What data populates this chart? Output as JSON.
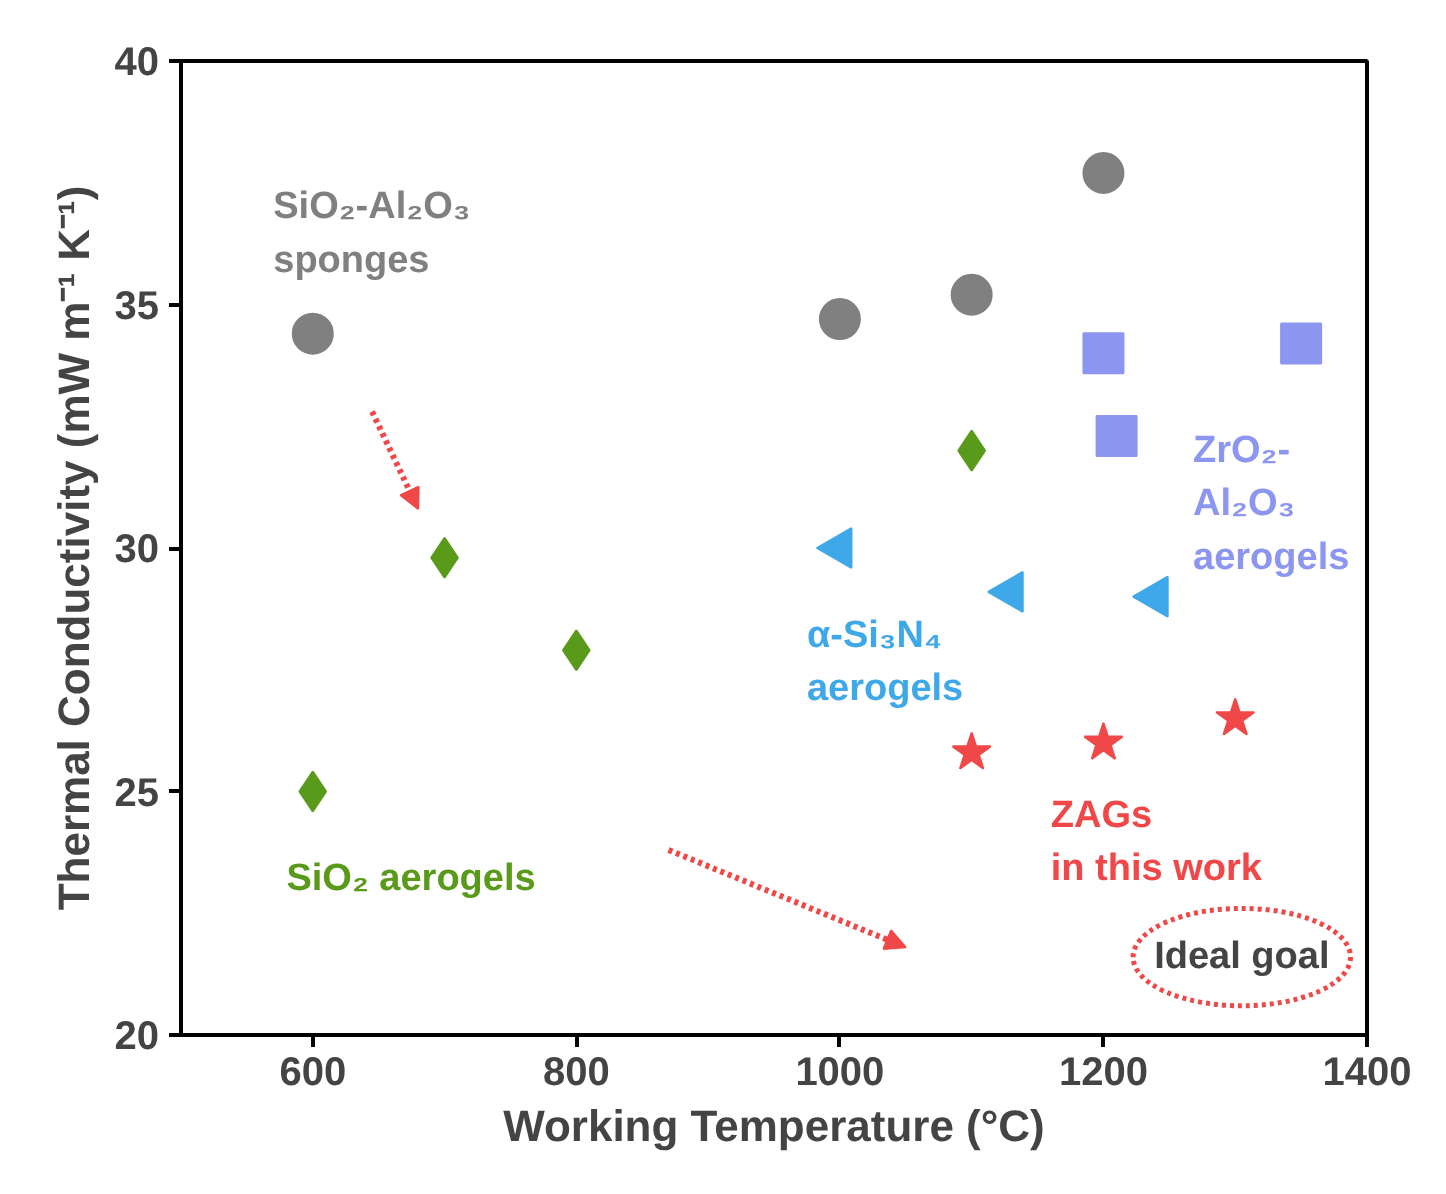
{
  "chart_data": {
    "type": "scatter",
    "xlabel": "Working Temperature (°C)",
    "ylabel": "Thermal Conductivity (mW m⁻¹ K⁻¹)",
    "xlim": [
      500,
      1400
    ],
    "xticks": [
      600,
      800,
      1000,
      1200,
      1400
    ],
    "ylim": [
      20,
      40
    ],
    "yticks": [
      20,
      25,
      30,
      35,
      40
    ],
    "grid": false,
    "series": [
      {
        "name": "SiO₂-Al₂O₃ sponges",
        "color": "#808080",
        "marker": "circle",
        "x": [
          600,
          1000,
          1100,
          1200
        ],
        "values": [
          34.4,
          34.7,
          35.2,
          37.7
        ]
      },
      {
        "name": "SiO₂ aerogels",
        "color": "#5a9a1a",
        "marker": "diamond",
        "x": [
          600,
          700,
          800,
          1100
        ],
        "values": [
          25.0,
          29.8,
          27.9,
          32.0
        ]
      },
      {
        "name": "ZrO₂-Al₂O₃ aerogels",
        "color": "#8c96f0",
        "marker": "square",
        "x": [
          1200,
          1210,
          1350
        ],
        "values": [
          34.0,
          32.3,
          34.2
        ]
      },
      {
        "name": "α-Si₃N₄ aerogels",
        "color": "#3fa8e8",
        "marker": "triangle",
        "x": [
          1000,
          1130,
          1240
        ],
        "values": [
          30.0,
          29.1,
          29.0
        ]
      },
      {
        "name": "ZAGs in this work",
        "color": "#f04848",
        "marker": "star",
        "x": [
          1100,
          1200,
          1300
        ],
        "values": [
          25.8,
          26.0,
          26.5
        ]
      }
    ],
    "annotations": [
      "Ideal goal"
    ]
  }
}
